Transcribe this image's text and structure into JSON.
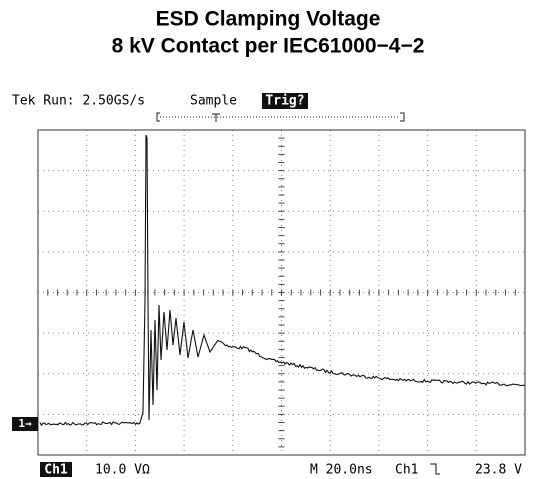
{
  "header": {
    "title": "ESD Clamping Voltage",
    "subtitle": "8 kV Contact per IEC61000−4−2"
  },
  "scope": {
    "status": "Tek Run: 2.50GS/s",
    "mode": "Sample",
    "trigger_state": "Trig?",
    "channel_marker": "1→",
    "footer": {
      "channel": "Ch1",
      "scale": "10.0 VΩ",
      "timebase": "M 20.0ns",
      "trigger_source": "Ch1",
      "trigger_level": "23.8 V"
    }
  }
}
